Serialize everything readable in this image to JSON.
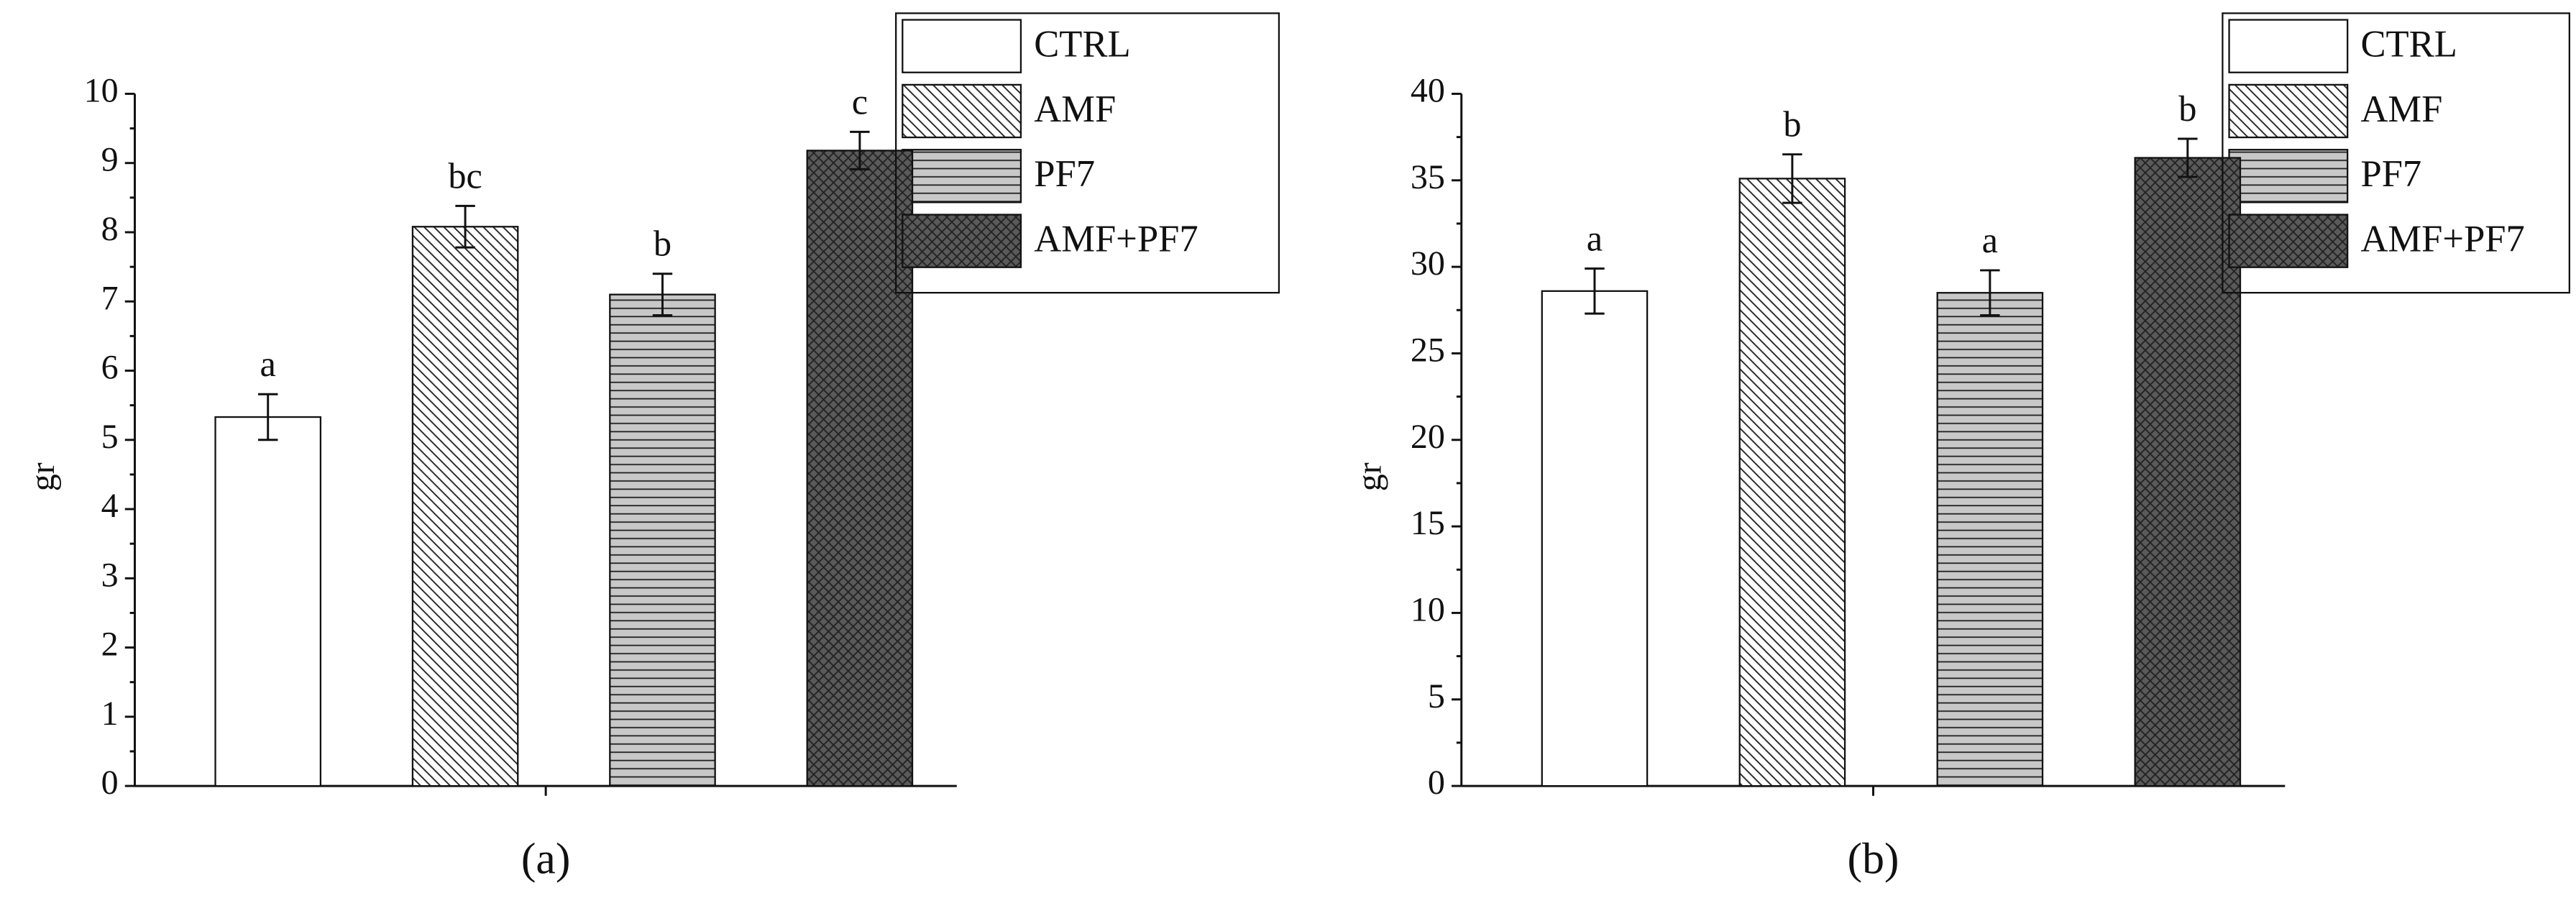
{
  "chart_data": [
    {
      "type": "bar",
      "label": "(a)",
      "ylabel": "gr",
      "ylim": [
        0,
        10
      ],
      "yticks": [
        0,
        1,
        2,
        3,
        4,
        5,
        6,
        7,
        8,
        9,
        10
      ],
      "legend": "top-right",
      "series": [
        {
          "name": "CTRL",
          "color": "#ffffff",
          "pattern": "none",
          "values": [
            5.33
          ],
          "errors": [
            0.33
          ],
          "significance": [
            "a"
          ]
        },
        {
          "name": "AMF",
          "color": "#ffffff",
          "pattern": "diagonal",
          "values": [
            8.08
          ],
          "errors": [
            0.3
          ],
          "significance": [
            "bc"
          ]
        },
        {
          "name": "PF7",
          "color": "#c8c8c8",
          "pattern": "horizontal",
          "values": [
            7.1
          ],
          "errors": [
            0.3
          ],
          "significance": [
            "b"
          ]
        },
        {
          "name": "AMF+PF7",
          "color": "#5a5a5a",
          "pattern": "crosshatch",
          "values": [
            9.18
          ],
          "errors": [
            0.27
          ],
          "significance": [
            "c"
          ]
        }
      ]
    },
    {
      "type": "bar",
      "label": "(b)",
      "ylabel": "gr",
      "ylim": [
        0,
        40
      ],
      "yticks": [
        0,
        5,
        10,
        15,
        20,
        25,
        30,
        35,
        40
      ],
      "legend": "top-right",
      "series": [
        {
          "name": "CTRL",
          "color": "#ffffff",
          "pattern": "none",
          "values": [
            28.6
          ],
          "errors": [
            1.3
          ],
          "significance": [
            "a"
          ]
        },
        {
          "name": "AMF",
          "color": "#ffffff",
          "pattern": "diagonal",
          "values": [
            35.1
          ],
          "errors": [
            1.4
          ],
          "significance": [
            "b"
          ]
        },
        {
          "name": "PF7",
          "color": "#c8c8c8",
          "pattern": "horizontal",
          "values": [
            28.5
          ],
          "errors": [
            1.3
          ],
          "significance": [
            "a"
          ]
        },
        {
          "name": "AMF+PF7",
          "color": "#5a5a5a",
          "pattern": "crosshatch",
          "values": [
            36.3
          ],
          "errors": [
            1.1
          ],
          "significance": [
            "b"
          ]
        }
      ]
    }
  ]
}
